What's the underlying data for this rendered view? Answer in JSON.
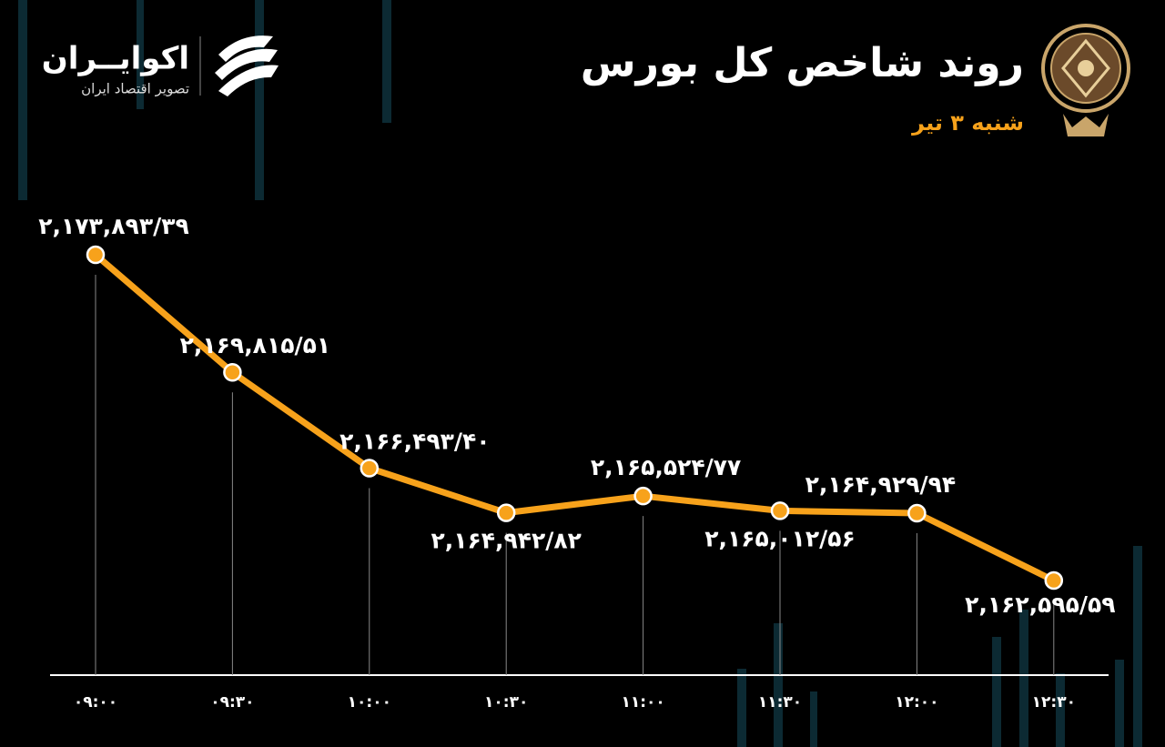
{
  "brand": {
    "name": "اکوایــران",
    "tagline": "تصویر اقتصاد ایران"
  },
  "chart_data": {
    "type": "line",
    "title": "روند شاخص کل بورس",
    "subtitle": "شنبه ۳ تیر",
    "categories": [
      "۰۹:۰۰",
      "۰۹:۳۰",
      "۱۰:۰۰",
      "۱۰:۳۰",
      "۱۱:۰۰",
      "۱۱:۳۰",
      "۱۲:۰۰",
      "۱۲:۳۰"
    ],
    "series": [
      {
        "color": "#f7a21b",
        "values": [
          2173893.39,
          2169815.51,
          2166493.4,
          2164942.82,
          2165524.77,
          2165012.56,
          2164929.94,
          2162595.59
        ],
        "value_labels": [
          "۲,۱۷۳,۸۹۳/۳۹",
          "۲,۱۶۹,۸۱۵/۵۱",
          "۲,۱۶۶,۴۹۳/۴۰",
          "۲,۱۶۴,۹۴۲/۸۲",
          "۲,۱۶۵,۵۲۴/۷۷",
          "۲,۱۶۵,۰۱۲/۵۶",
          "۲,۱۶۴,۹۲۹/۹۴",
          "۲,۱۶۲,۵۹۵/۵۹"
        ]
      }
    ]
  }
}
